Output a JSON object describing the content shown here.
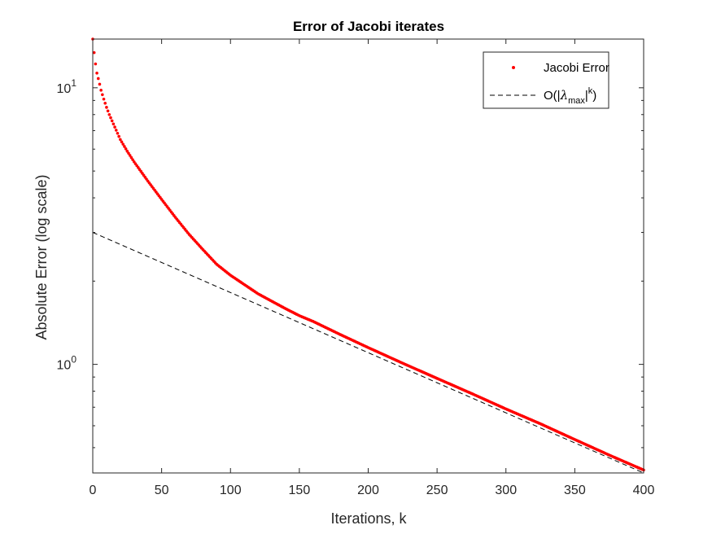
{
  "chart_data": {
    "type": "scatter",
    "title": "Error of Jacobi iterates",
    "xlabel": "Iterations, k",
    "ylabel": "Absolute Error (log scale)",
    "xlim": [
      0,
      400
    ],
    "ylim": [
      0.405,
      15
    ],
    "yscale": "log",
    "grid": false,
    "legend_position": "top-right",
    "x_ticks": [
      "0",
      "50",
      "100",
      "150",
      "200",
      "250",
      "300",
      "350",
      "400"
    ],
    "y_ticks": [
      {
        "value": 1,
        "base": "10",
        "exp": "0"
      },
      {
        "value": 10,
        "base": "10",
        "exp": "1"
      }
    ],
    "series": [
      {
        "name": "Jacobi Error",
        "style": "red dots",
        "color": "#ff0000",
        "x": [
          0,
          1,
          2,
          3,
          4,
          5,
          6,
          8,
          10,
          12,
          15,
          20,
          25,
          30,
          40,
          50,
          60,
          70,
          80,
          90,
          100,
          120,
          140,
          150,
          160,
          180,
          200,
          225,
          250,
          275,
          300,
          325,
          350,
          375,
          400
        ],
        "y": [
          15.0,
          13.4,
          12.2,
          11.3,
          10.8,
          10.3,
          9.8,
          9.1,
          8.5,
          8.0,
          7.4,
          6.5,
          5.9,
          5.4,
          4.6,
          3.95,
          3.4,
          2.95,
          2.6,
          2.3,
          2.1,
          1.8,
          1.59,
          1.5,
          1.43,
          1.28,
          1.15,
          1.01,
          0.89,
          0.785,
          0.69,
          0.61,
          0.535,
          0.47,
          0.415
        ]
      },
      {
        "name": "O(|λmax|^k)",
        "style": "black dashed",
        "color": "#000000",
        "x": [
          0,
          400
        ],
        "y": [
          3.0,
          0.405
        ]
      }
    ],
    "legend": [
      {
        "label": "Jacobi Error",
        "marker": "dot",
        "color": "#ff0000"
      },
      {
        "label_parts": {
          "prefix": "O(|",
          "lambda": "λ",
          "sub": "max",
          "mid": "|",
          "sup": "k",
          "suffix": ")"
        },
        "marker": "dash",
        "color": "#000000"
      }
    ]
  }
}
